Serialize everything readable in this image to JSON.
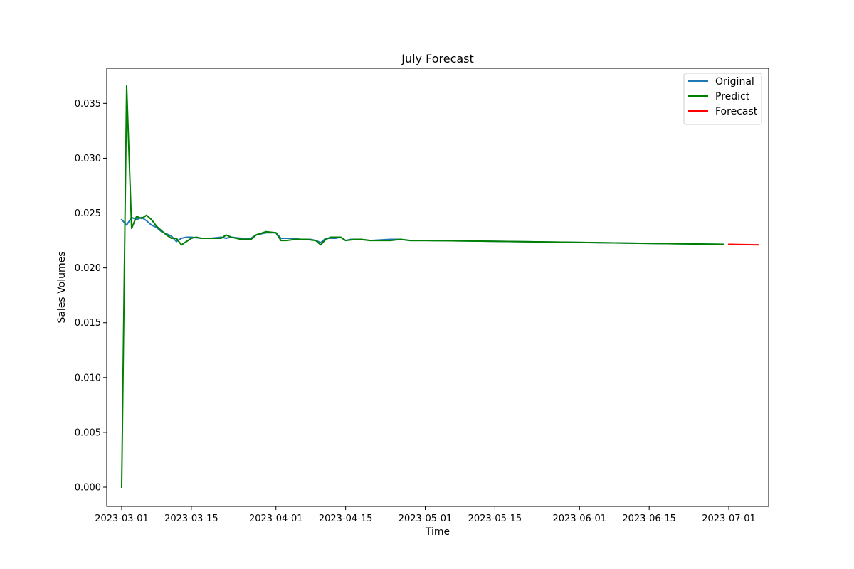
{
  "chart_data": {
    "type": "line",
    "title": "July Forecast",
    "xlabel": "Time",
    "ylabel": "Sales Volumes",
    "xlim": [
      "2023-02-26",
      "2023-07-09"
    ],
    "ylim": [
      -0.00175,
      0.0382
    ],
    "x_ticks": [
      "2023-03-01",
      "2023-03-15",
      "2023-04-01",
      "2023-04-15",
      "2023-05-01",
      "2023-05-15",
      "2023-06-01",
      "2023-06-15",
      "2023-07-01"
    ],
    "y_ticks": [
      0.0,
      0.005,
      0.01,
      0.015,
      0.02,
      0.025,
      0.03,
      0.035
    ],
    "y_tick_labels": [
      "0.000",
      "0.005",
      "0.010",
      "0.015",
      "0.020",
      "0.025",
      "0.030",
      "0.035"
    ],
    "legend": {
      "placement": "top-right"
    },
    "grid": false,
    "series": [
      {
        "name": "Original",
        "color": "#1f77b4",
        "points": [
          [
            "2023-03-01",
            0.0244
          ],
          [
            "2023-03-02",
            0.0239
          ],
          [
            "2023-03-03",
            0.0246
          ],
          [
            "2023-03-04",
            0.0244
          ],
          [
            "2023-03-05",
            0.0246
          ],
          [
            "2023-03-06",
            0.0243
          ],
          [
            "2023-03-07",
            0.0239
          ],
          [
            "2023-03-08",
            0.0237
          ],
          [
            "2023-03-09",
            0.0233
          ],
          [
            "2023-03-10",
            0.0231
          ],
          [
            "2023-03-11",
            0.0229
          ],
          [
            "2023-03-12",
            0.0224
          ],
          [
            "2023-03-13",
            0.0227
          ],
          [
            "2023-03-14",
            0.0228
          ],
          [
            "2023-03-15",
            0.0228
          ],
          [
            "2023-03-17",
            0.0227
          ],
          [
            "2023-03-19",
            0.0227
          ],
          [
            "2023-03-21",
            0.0228
          ],
          [
            "2023-03-22",
            0.0227
          ],
          [
            "2023-03-23",
            0.0228
          ],
          [
            "2023-03-25",
            0.0227
          ],
          [
            "2023-03-27",
            0.0227
          ],
          [
            "2023-03-28",
            0.023
          ],
          [
            "2023-03-30",
            0.0232
          ],
          [
            "2023-04-01",
            0.0232
          ],
          [
            "2023-04-02",
            0.0227
          ],
          [
            "2023-04-04",
            0.0227
          ],
          [
            "2023-04-06",
            0.0226
          ],
          [
            "2023-04-08",
            0.0226
          ],
          [
            "2023-04-09",
            0.0225
          ],
          [
            "2023-04-10",
            0.0223
          ],
          [
            "2023-04-11",
            0.0227
          ],
          [
            "2023-04-13",
            0.0227
          ],
          [
            "2023-04-14",
            0.0228
          ],
          [
            "2023-04-15",
            0.0225
          ],
          [
            "2023-04-16",
            0.0226
          ],
          [
            "2023-04-18",
            0.0226
          ],
          [
            "2023-04-20",
            0.0225
          ],
          [
            "2023-04-24",
            0.0226
          ],
          [
            "2023-04-26",
            0.0226
          ],
          [
            "2023-04-28",
            0.0225
          ],
          [
            "2023-05-01",
            0.0225
          ],
          [
            "2023-05-05",
            0.02248
          ],
          [
            "2023-06-30",
            0.02215
          ]
        ]
      },
      {
        "name": "Predict",
        "color": "#008000",
        "points": [
          [
            "2023-03-01",
            0.0
          ],
          [
            "2023-03-02",
            0.0366
          ],
          [
            "2023-03-03",
            0.0236
          ],
          [
            "2023-03-04",
            0.0247
          ],
          [
            "2023-03-05",
            0.0245
          ],
          [
            "2023-03-06",
            0.0248
          ],
          [
            "2023-03-07",
            0.0244
          ],
          [
            "2023-03-08",
            0.0238
          ],
          [
            "2023-03-09",
            0.0234
          ],
          [
            "2023-03-10",
            0.023
          ],
          [
            "2023-03-11",
            0.0227
          ],
          [
            "2023-03-12",
            0.0227
          ],
          [
            "2023-03-13",
            0.0221
          ],
          [
            "2023-03-14",
            0.0224
          ],
          [
            "2023-03-15",
            0.0227
          ],
          [
            "2023-03-16",
            0.0228
          ],
          [
            "2023-03-17",
            0.0227
          ],
          [
            "2023-03-19",
            0.0227
          ],
          [
            "2023-03-21",
            0.0227
          ],
          [
            "2023-03-22",
            0.023
          ],
          [
            "2023-03-23",
            0.0228
          ],
          [
            "2023-03-25",
            0.0226
          ],
          [
            "2023-03-27",
            0.0226
          ],
          [
            "2023-03-28",
            0.023
          ],
          [
            "2023-03-30",
            0.0233
          ],
          [
            "2023-04-01",
            0.0232
          ],
          [
            "2023-04-02",
            0.0225
          ],
          [
            "2023-04-03",
            0.0225
          ],
          [
            "2023-04-05",
            0.0226
          ],
          [
            "2023-04-07",
            0.0226
          ],
          [
            "2023-04-09",
            0.0225
          ],
          [
            "2023-04-10",
            0.0221
          ],
          [
            "2023-04-11",
            0.0226
          ],
          [
            "2023-04-12",
            0.0228
          ],
          [
            "2023-04-14",
            0.0228
          ],
          [
            "2023-04-15",
            0.0225
          ],
          [
            "2023-04-17",
            0.0226
          ],
          [
            "2023-04-18",
            0.0226
          ],
          [
            "2023-04-20",
            0.0225
          ],
          [
            "2023-04-24",
            0.0225
          ],
          [
            "2023-04-26",
            0.0226
          ],
          [
            "2023-04-28",
            0.0225
          ],
          [
            "2023-05-01",
            0.0225
          ],
          [
            "2023-05-05",
            0.02248
          ],
          [
            "2023-06-30",
            0.02215
          ]
        ]
      },
      {
        "name": "Forecast",
        "color": "#ff0000",
        "points": [
          [
            "2023-07-01",
            0.02215
          ],
          [
            "2023-07-07",
            0.0221
          ]
        ]
      }
    ]
  }
}
